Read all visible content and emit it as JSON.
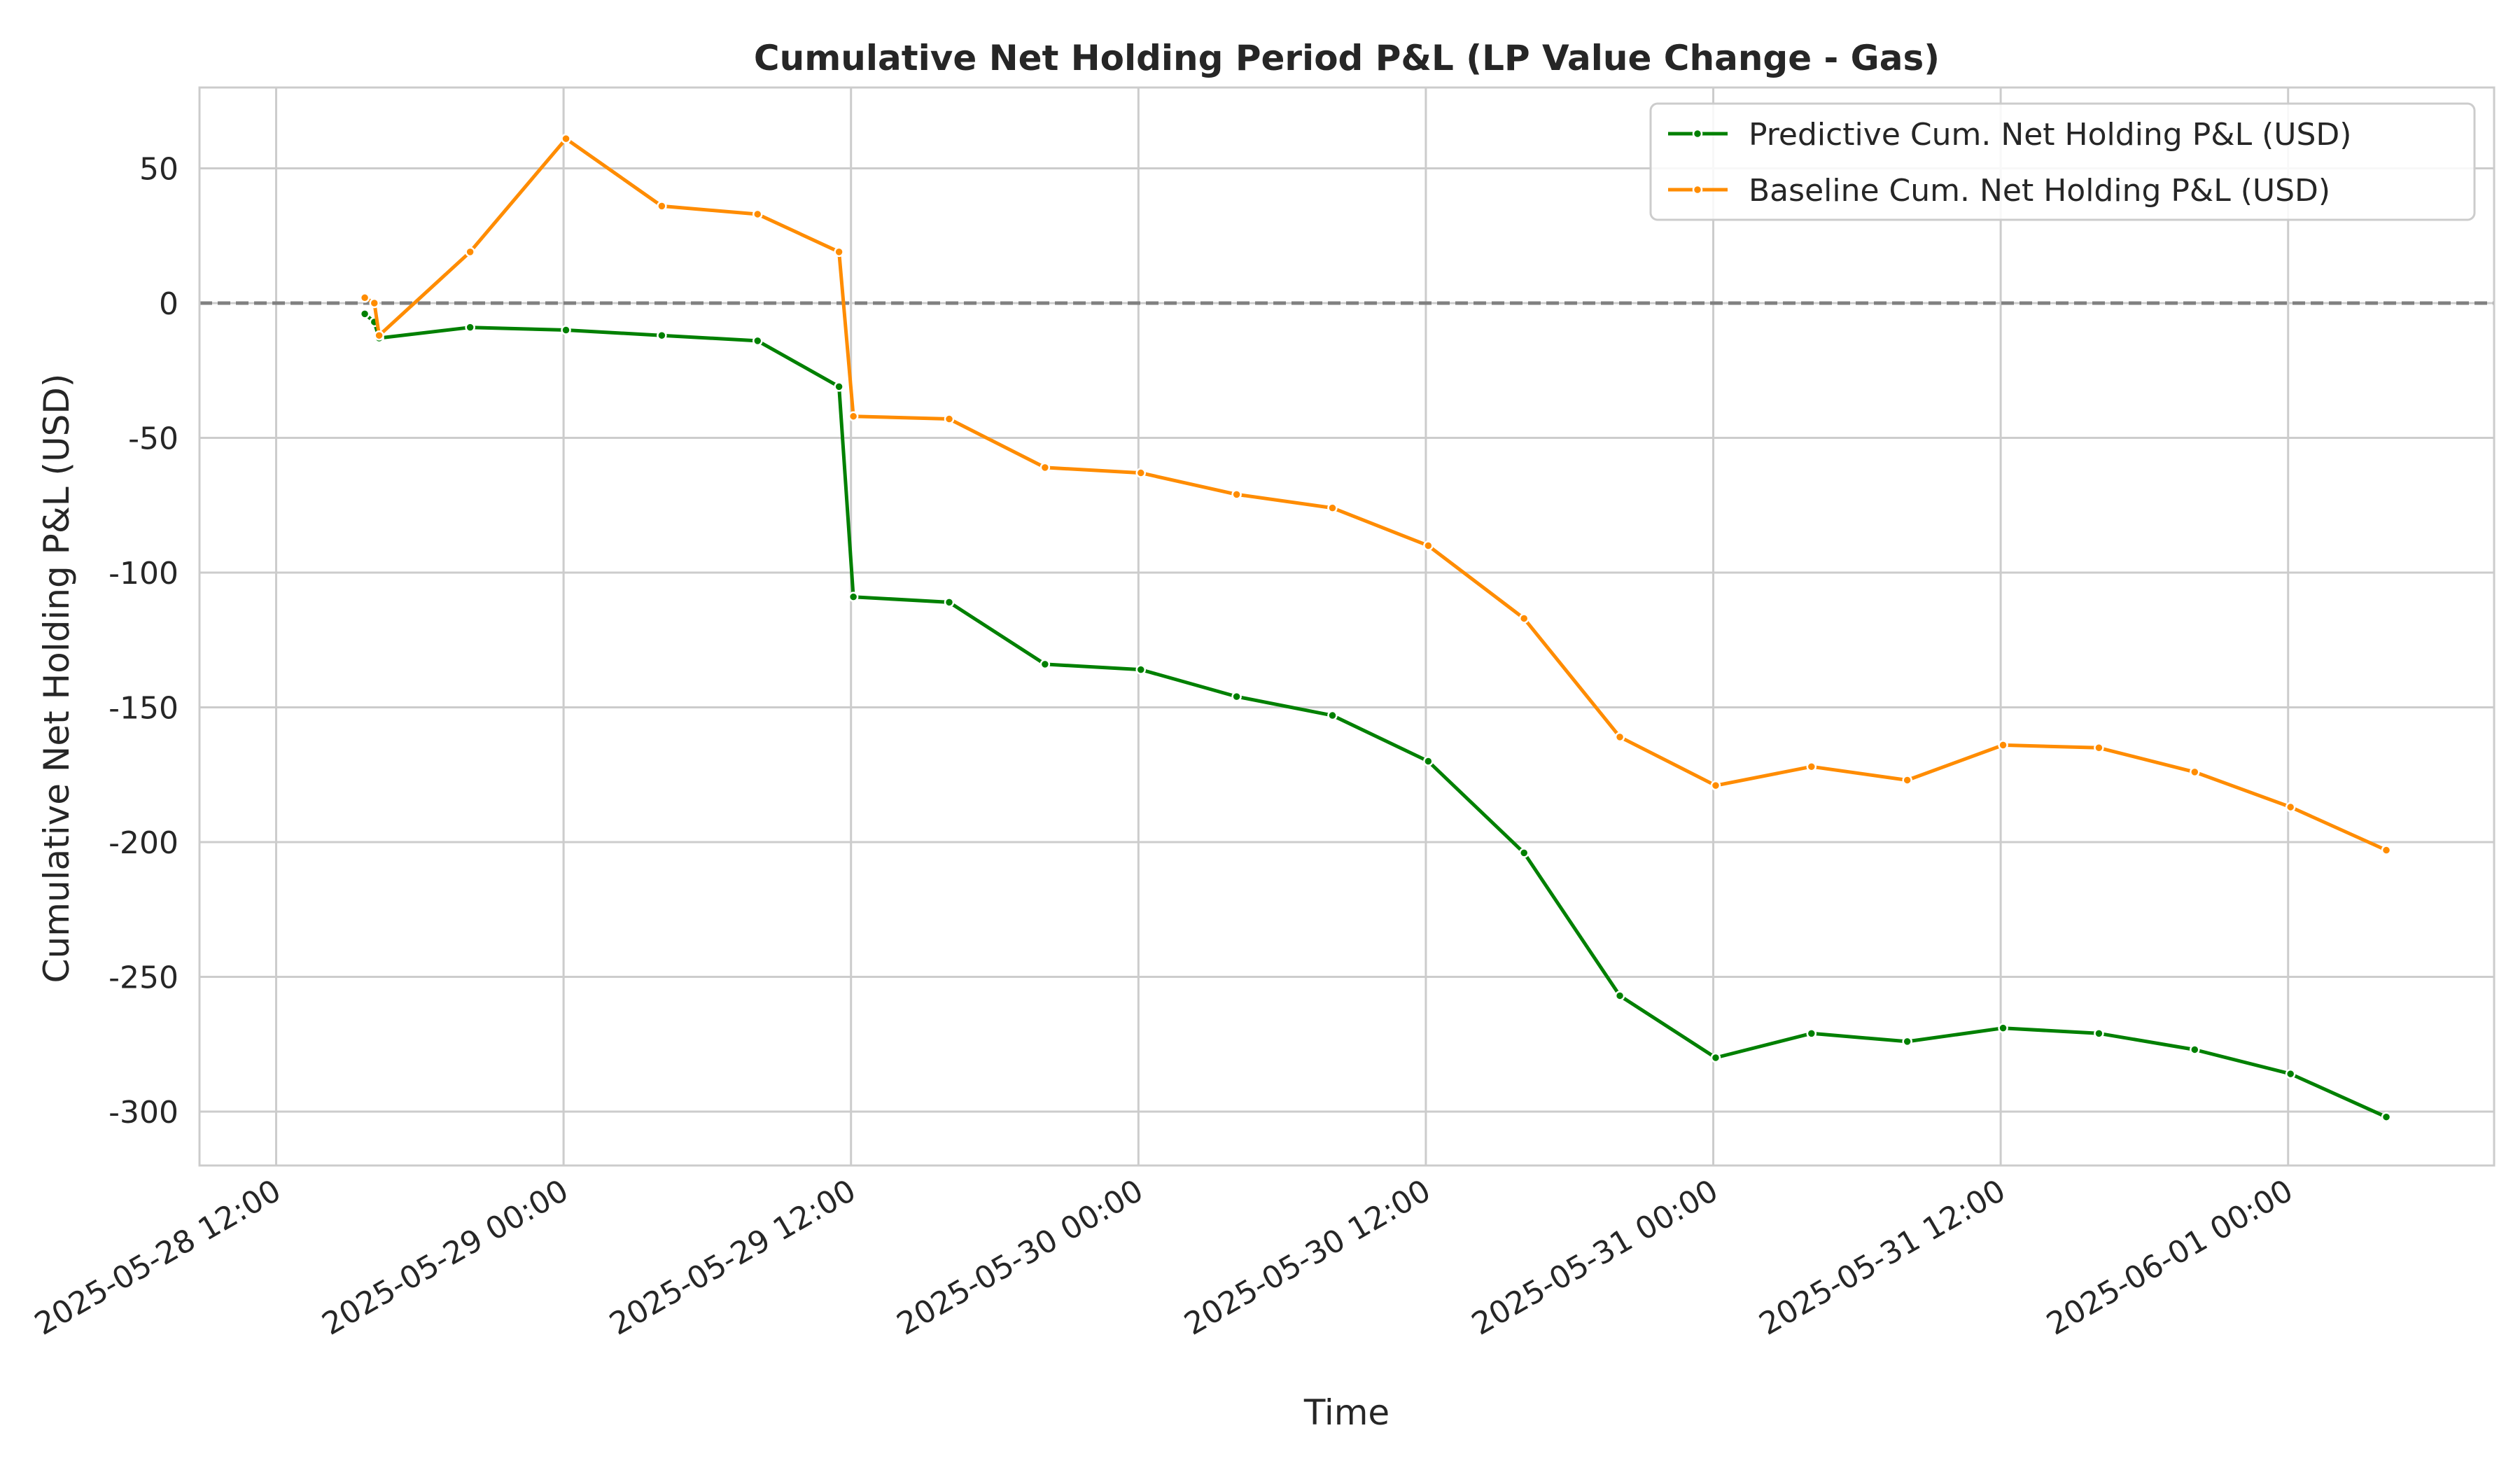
{
  "chart_data": {
    "type": "line",
    "title": "Cumulative Net Holding Period P&L (LP Value Change - Gas)",
    "xlabel": "Time",
    "ylabel": "Cumulative Net Holding P&L (USD)",
    "xlim": [
      "2025-05-28 08:48",
      "2025-06-01 08:36"
    ],
    "ylim": [
      -320,
      80
    ],
    "x_ticks": [
      "2025-05-28 12:00",
      "2025-05-29 00:00",
      "2025-05-29 12:00",
      "2025-05-30 00:00",
      "2025-05-30 12:00",
      "2025-05-31 00:00",
      "2025-05-31 12:00",
      "2025-06-01 00:00"
    ],
    "y_ticks": [
      50,
      0,
      -50,
      -100,
      -150,
      -200,
      -250,
      -300
    ],
    "y_tick_labels": [
      "50",
      "0",
      "-50",
      "-100",
      "-150",
      "-200",
      "-250",
      "-300"
    ],
    "grid": true,
    "reference_line": {
      "y": 0,
      "color": "#808080",
      "style": "dashed"
    },
    "legend_position": "top-right",
    "series": [
      {
        "name": "Predictive Cum. Net Holding P&L (USD)",
        "color": "#008000",
        "points": [
          [
            "2025-05-28 15:42",
            -4
          ],
          [
            "2025-05-28 16:06",
            -7
          ],
          [
            "2025-05-28 16:18",
            -13
          ],
          [
            "2025-05-28 20:06",
            -9
          ],
          [
            "2025-05-29 00:06",
            -10
          ],
          [
            "2025-05-29 04:06",
            -12
          ],
          [
            "2025-05-29 08:06",
            -14
          ],
          [
            "2025-05-29 11:30",
            -31
          ],
          [
            "2025-05-29 12:06",
            -109
          ],
          [
            "2025-05-29 16:06",
            -111
          ],
          [
            "2025-05-29 20:06",
            -134
          ],
          [
            "2025-05-30 00:06",
            -136
          ],
          [
            "2025-05-30 04:06",
            -146
          ],
          [
            "2025-05-30 08:06",
            -153
          ],
          [
            "2025-05-30 12:06",
            -170
          ],
          [
            "2025-05-30 16:06",
            -204
          ],
          [
            "2025-05-30 20:06",
            -257
          ],
          [
            "2025-05-31 00:06",
            -280
          ],
          [
            "2025-05-31 04:06",
            -271
          ],
          [
            "2025-05-31 08:06",
            -274
          ],
          [
            "2025-05-31 12:06",
            -269
          ],
          [
            "2025-05-31 16:06",
            -271
          ],
          [
            "2025-05-31 20:06",
            -277
          ],
          [
            "2025-06-01 00:06",
            -286
          ],
          [
            "2025-06-01 04:06",
            -302
          ]
        ]
      },
      {
        "name": "Baseline Cum. Net Holding P&L (USD)",
        "color": "#ff8c00",
        "points": [
          [
            "2025-05-28 15:42",
            2
          ],
          [
            "2025-05-28 16:06",
            0
          ],
          [
            "2025-05-28 16:18",
            -12
          ],
          [
            "2025-05-28 20:06",
            19
          ],
          [
            "2025-05-29 00:06",
            61
          ],
          [
            "2025-05-29 04:06",
            36
          ],
          [
            "2025-05-29 08:06",
            33
          ],
          [
            "2025-05-29 11:30",
            19
          ],
          [
            "2025-05-29 12:06",
            -42
          ],
          [
            "2025-05-29 16:06",
            -43
          ],
          [
            "2025-05-29 20:06",
            -61
          ],
          [
            "2025-05-30 00:06",
            -63
          ],
          [
            "2025-05-30 04:06",
            -71
          ],
          [
            "2025-05-30 08:06",
            -76
          ],
          [
            "2025-05-30 12:06",
            -90
          ],
          [
            "2025-05-30 16:06",
            -117
          ],
          [
            "2025-05-30 20:06",
            -161
          ],
          [
            "2025-05-31 00:06",
            -179
          ],
          [
            "2025-05-31 04:06",
            -172
          ],
          [
            "2025-05-31 08:06",
            -177
          ],
          [
            "2025-05-31 12:06",
            -164
          ],
          [
            "2025-05-31 16:06",
            -165
          ],
          [
            "2025-05-31 20:06",
            -174
          ],
          [
            "2025-06-01 00:06",
            -187
          ],
          [
            "2025-06-01 04:06",
            -203
          ]
        ]
      }
    ]
  }
}
